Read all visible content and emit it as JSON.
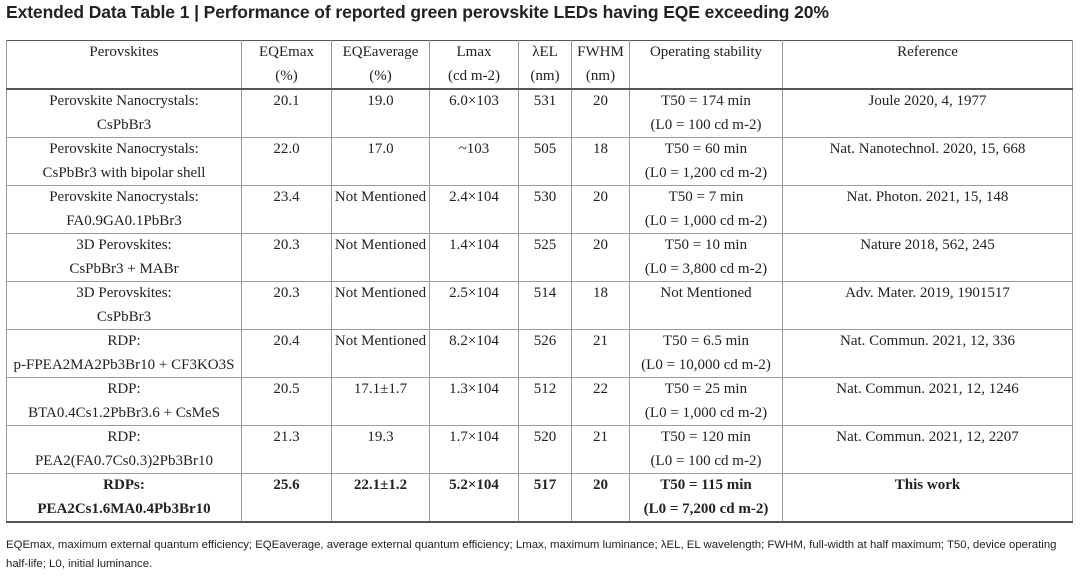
{
  "title": "Extended Data Table 1 | Performance of reported green perovskite LEDs having EQE exceeding 20%",
  "headers": [
    {
      "l1": "Perovskites",
      "l2": ""
    },
    {
      "l1": "EQEmax",
      "l2": "(%)"
    },
    {
      "l1": "EQEaverage",
      "l2": "(%)"
    },
    {
      "l1": "Lmax",
      "l2": "(cd m-2)"
    },
    {
      "l1": "λEL",
      "l2": "(nm)"
    },
    {
      "l1": "FWHM",
      "l2": "(nm)"
    },
    {
      "l1": "Operating stability",
      "l2": ""
    },
    {
      "l1": "Reference",
      "l2": ""
    }
  ],
  "rows": [
    {
      "per1": "Perovskite Nanocrystals:",
      "per2": "CsPbBr3",
      "eqe_max": "20.1",
      "eqe_avg": "19.0",
      "lmax": "6.0×103",
      "lambda": "531",
      "fwhm": "20",
      "stab1": "T50 = 174 min",
      "stab2": "(L0 = 100 cd m-2)",
      "ref": "Joule 2020, 4, 1977"
    },
    {
      "per1": "Perovskite Nanocrystals:",
      "per2": "CsPbBr3 with bipolar shell",
      "eqe_max": "22.0",
      "eqe_avg": "17.0",
      "lmax": "~103",
      "lambda": "505",
      "fwhm": "18",
      "stab1": "T50 = 60 min",
      "stab2": "(L0 = 1,200 cd m-2)",
      "ref": "Nat. Nanotechnol. 2020, 15, 668"
    },
    {
      "per1": "Perovskite Nanocrystals:",
      "per2": "FA0.9GA0.1PbBr3",
      "eqe_max": "23.4",
      "eqe_avg": "Not Mentioned",
      "lmax": "2.4×104",
      "lambda": "530",
      "fwhm": "20",
      "stab1": "T50 = 7 min",
      "stab2": "(L0 = 1,000 cd m-2)",
      "ref": "Nat. Photon. 2021, 15, 148"
    },
    {
      "per1": "3D Perovskites:",
      "per2": "CsPbBr3 + MABr",
      "eqe_max": "20.3",
      "eqe_avg": "Not Mentioned",
      "lmax": "1.4×104",
      "lambda": "525",
      "fwhm": "20",
      "stab1": "T50 = 10 min",
      "stab2": "(L0 = 3,800 cd m-2)",
      "ref": "Nature 2018, 562, 245"
    },
    {
      "per1": "3D Perovskites:",
      "per2": "CsPbBr3",
      "eqe_max": "20.3",
      "eqe_avg": "Not Mentioned",
      "lmax": "2.5×104",
      "lambda": "514",
      "fwhm": "18",
      "stab1": "Not Mentioned",
      "stab2": "",
      "ref": "Adv. Mater. 2019, 1901517"
    },
    {
      "per1": "RDP:",
      "per2": "p-FPEA2MA2Pb3Br10 + CF3KO3S",
      "eqe_max": "20.4",
      "eqe_avg": "Not Mentioned",
      "lmax": "8.2×104",
      "lambda": "526",
      "fwhm": "21",
      "stab1": "T50 = 6.5 min",
      "stab2": "(L0 = 10,000 cd m-2)",
      "ref": "Nat. Commun. 2021, 12, 336"
    },
    {
      "per1": "RDP:",
      "per2": "BTA0.4Cs1.2PbBr3.6 + CsMeS",
      "eqe_max": "20.5",
      "eqe_avg": "17.1±1.7",
      "lmax": "1.3×104",
      "lambda": "512",
      "fwhm": "22",
      "stab1": "T50 = 25 min",
      "stab2": "(L0 = 1,000 cd m-2)",
      "ref": "Nat. Commun. 2021, 12, 1246"
    },
    {
      "per1": "RDP:",
      "per2": "PEA2(FA0.7Cs0.3)2Pb3Br10",
      "eqe_max": "21.3",
      "eqe_avg": "19.3",
      "lmax": "1.7×104",
      "lambda": "520",
      "fwhm": "21",
      "stab1": "T50 = 120 min",
      "stab2": "(L0 = 100 cd m-2)",
      "ref": "Nat. Commun. 2021, 12, 2207"
    },
    {
      "per1": "RDPs:",
      "per2": "PEA2Cs1.6MA0.4Pb3Br10",
      "eqe_max": "25.6",
      "eqe_avg": "22.1±1.2",
      "lmax": "5.2×104",
      "lambda": "517",
      "fwhm": "20",
      "stab1": "T50 = 115 min",
      "stab2": "(L0 = 7,200 cd m-2)",
      "ref": "This work"
    }
  ],
  "footnote": "EQEmax, maximum external quantum efficiency; EQEaverage, average external quantum efficiency; Lmax, maximum luminance; λEL, EL wavelength; FWHM, full-width at half maximum; T50, device operating half-life; L0, initial luminance."
}
